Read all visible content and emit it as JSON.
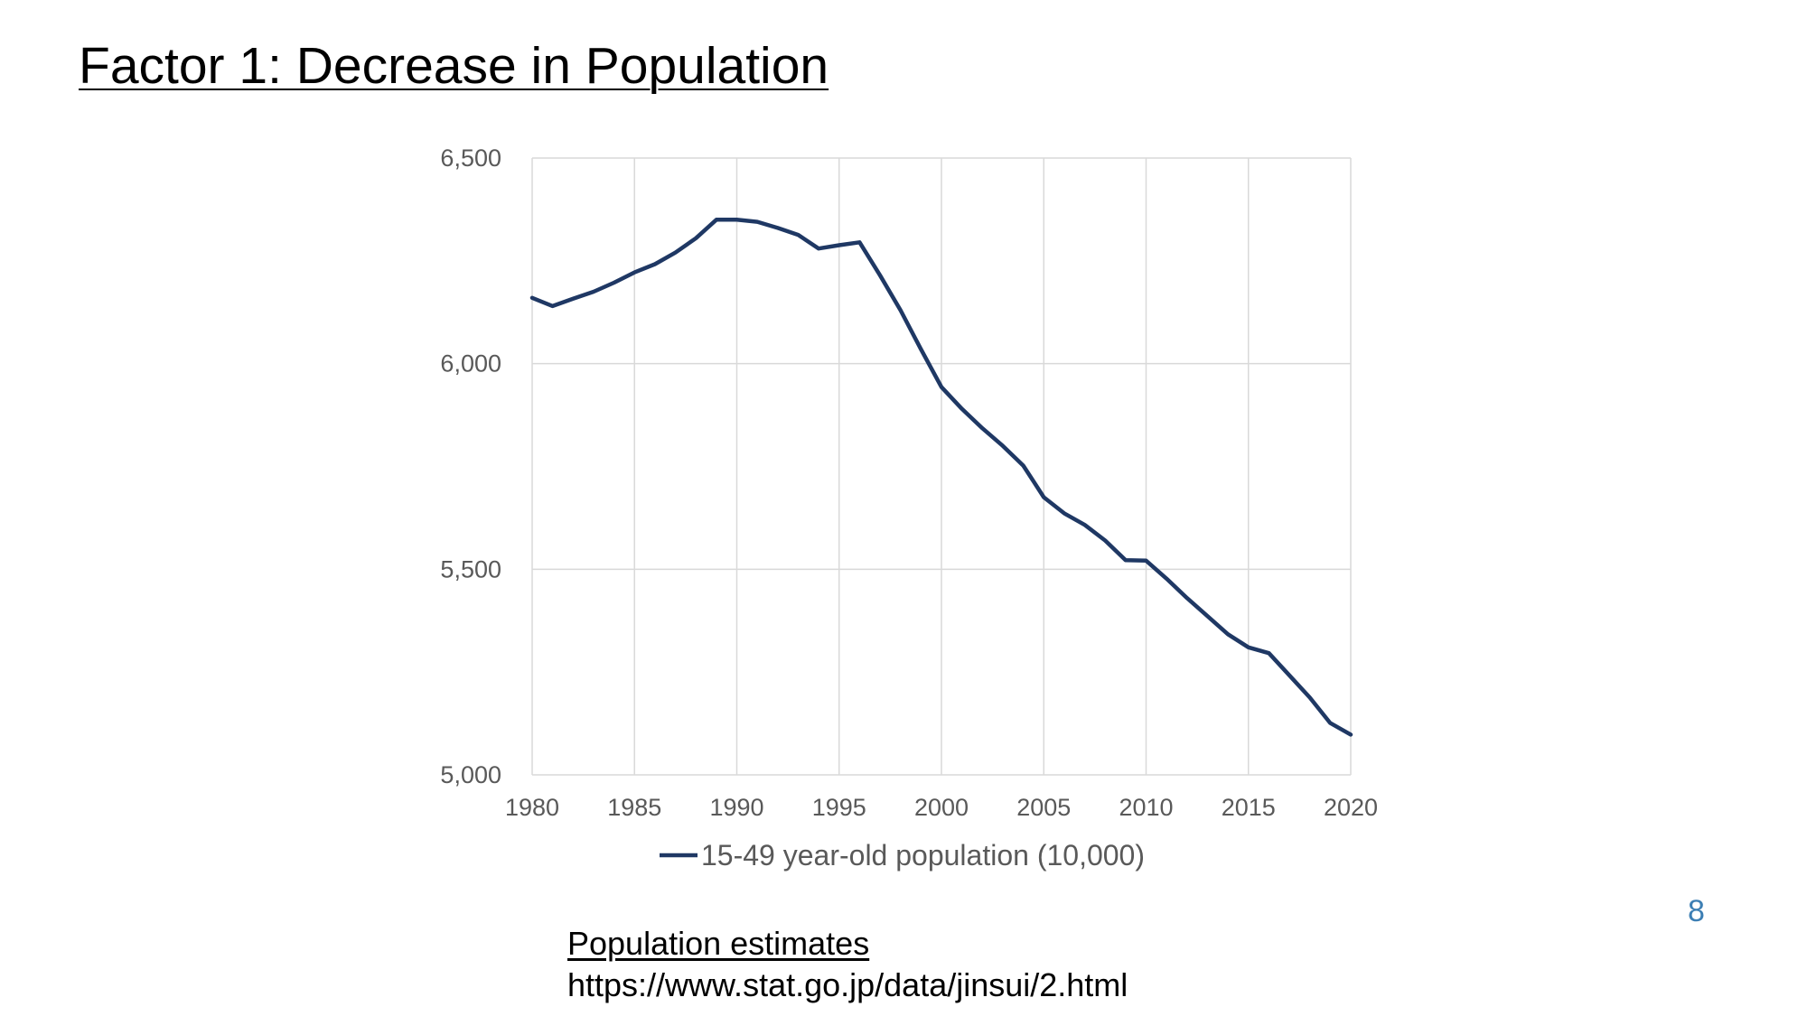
{
  "slide": {
    "title": "Factor 1: Decrease in Population",
    "page_number": "8",
    "source_title": "Population estimates",
    "source_url": "https://www.stat.go.jp/data/jinsui/2.html"
  },
  "colors": {
    "series": "#1f3864",
    "grid": "#d9d9d9",
    "tick_label": "#595959",
    "page_number": "#3d7fb4"
  },
  "chart_data": {
    "type": "line",
    "xlim": [
      1980,
      2020
    ],
    "ylim": [
      5000,
      6500
    ],
    "x_ticks": [
      1980,
      1985,
      1990,
      1995,
      2000,
      2005,
      2010,
      2015,
      2020
    ],
    "x_tick_labels": [
      "1980",
      "1985",
      "1990",
      "1995",
      "2000",
      "2005",
      "2010",
      "2015",
      "2020"
    ],
    "y_ticks": [
      5000,
      5500,
      6000,
      6500
    ],
    "y_tick_labels": [
      "5,000",
      "5,500",
      "6,000",
      "6,500"
    ],
    "grid": true,
    "legend_position": "bottom",
    "series": [
      {
        "name": "15-49 year-old population (10,000)",
        "x": [
          1980,
          1981,
          1982,
          1983,
          1984,
          1985,
          1986,
          1987,
          1988,
          1989,
          1990,
          1991,
          1992,
          1993,
          1994,
          1995,
          1996,
          1997,
          1998,
          1999,
          2000,
          2001,
          2002,
          2003,
          2004,
          2005,
          2006,
          2007,
          2008,
          2009,
          2010,
          2011,
          2012,
          2013,
          2014,
          2015,
          2016,
          2017,
          2018,
          2019,
          2020
        ],
        "y": [
          6160,
          6140,
          6158,
          6175,
          6197,
          6222,
          6242,
          6270,
          6305,
          6350,
          6350,
          6345,
          6330,
          6313,
          6280,
          6288,
          6295,
          6215,
          6130,
          6035,
          5943,
          5890,
          5843,
          5800,
          5752,
          5675,
          5636,
          5608,
          5570,
          5522,
          5521,
          5477,
          5430,
          5386,
          5342,
          5310,
          5296,
          5242,
          5188,
          5126,
          5098
        ]
      }
    ]
  }
}
